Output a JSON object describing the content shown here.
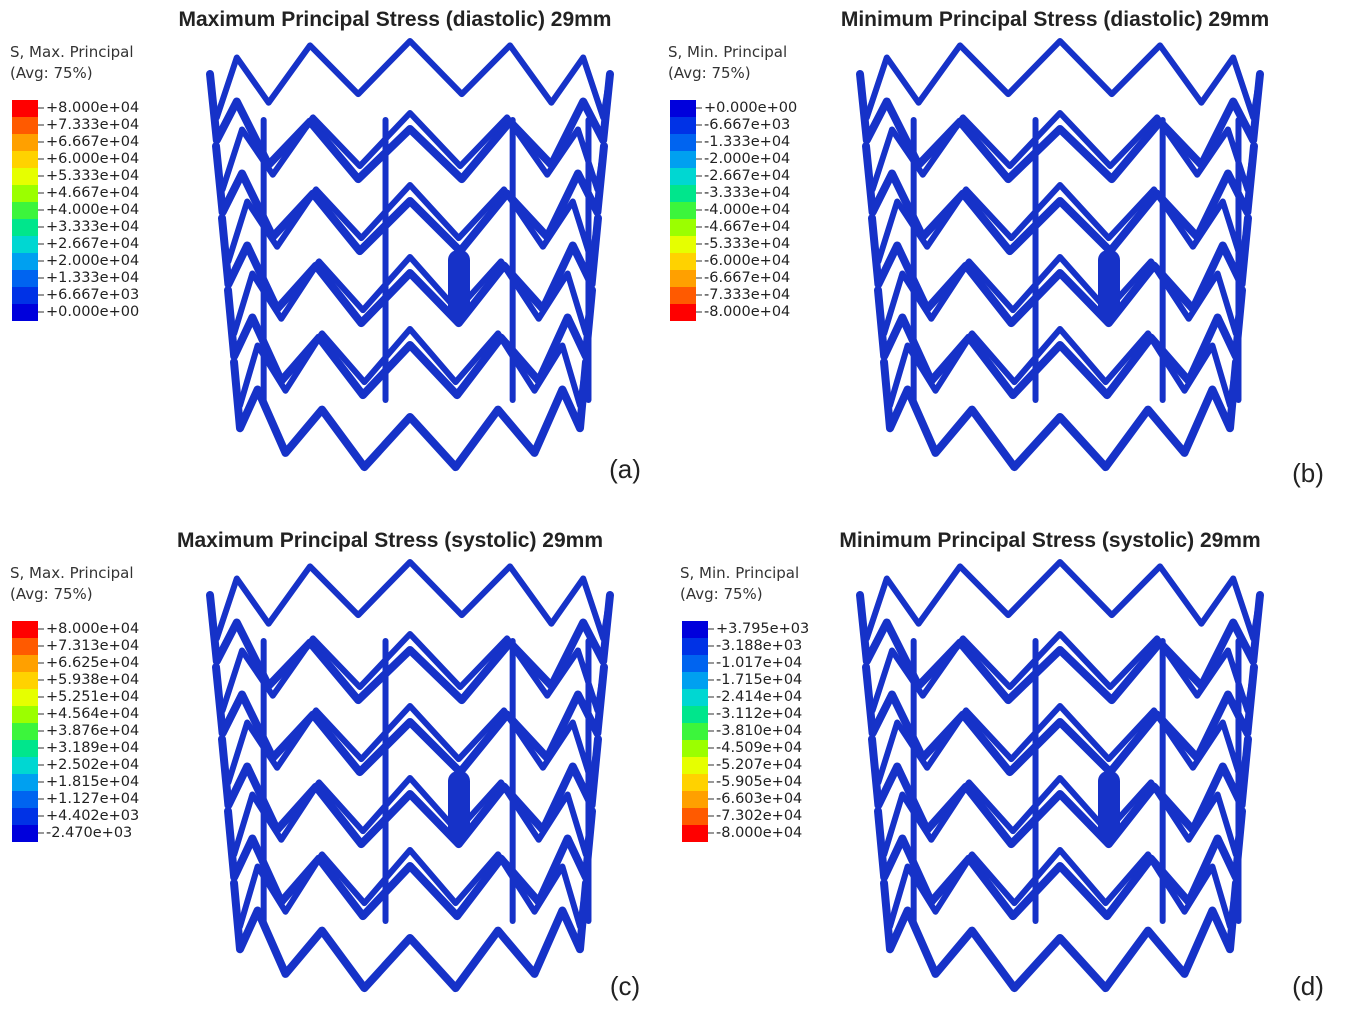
{
  "panels": [
    {
      "title": "Maximum Principal Stress (diastolic) 29mm",
      "legend_title": "S, Max. Principal",
      "legend_subtitle": "(Avg: 75%)",
      "legend_labels": [
        "+8.000e+04",
        "+7.333e+04",
        "+6.667e+04",
        "+6.000e+04",
        "+5.333e+04",
        "+4.667e+04",
        "+4.000e+04",
        "+3.333e+04",
        "+2.667e+04",
        "+2.000e+04",
        "+1.333e+04",
        "+6.667e+03",
        "+0.000e+00"
      ],
      "panel_label": "(a)"
    },
    {
      "title": "Minimum Principal Stress (diastolic) 29mm",
      "legend_title": "S, Min. Principal",
      "legend_subtitle": "(Avg: 75%)",
      "legend_labels": [
        "+0.000e+00",
        "-6.667e+03",
        "-1.333e+04",
        "-2.000e+04",
        "-2.667e+04",
        "-3.333e+04",
        "-4.000e+04",
        "-4.667e+04",
        "-5.333e+04",
        "-6.000e+04",
        "-6.667e+04",
        "-7.333e+04",
        "-8.000e+04"
      ],
      "panel_label": "(b)"
    },
    {
      "title": "Maximum Principal Stress (systolic) 29mm",
      "legend_title": "S, Max. Principal",
      "legend_subtitle": "(Avg: 75%)",
      "legend_labels": [
        "+8.000e+04",
        "+7.313e+04",
        "+6.625e+04",
        "+5.938e+04",
        "+5.251e+04",
        "+4.564e+04",
        "+3.876e+04",
        "+3.189e+04",
        "+2.502e+04",
        "+1.815e+04",
        "+1.127e+04",
        "+4.402e+03",
        "-2.470e+03"
      ],
      "panel_label": "(c)"
    },
    {
      "title": "Minimum Principal Stress (systolic) 29mm",
      "legend_title": "S, Min. Principal",
      "legend_subtitle": "(Avg: 75%)",
      "legend_labels": [
        "+3.795e+03",
        "-3.188e+03",
        "-1.017e+04",
        "-1.715e+04",
        "-2.414e+04",
        "-3.112e+04",
        "-3.810e+04",
        "-4.509e+04",
        "-5.207e+04",
        "-5.905e+04",
        "-6.603e+04",
        "-7.302e+04",
        "-8.000e+04"
      ],
      "panel_label": "(d)"
    }
  ]
}
